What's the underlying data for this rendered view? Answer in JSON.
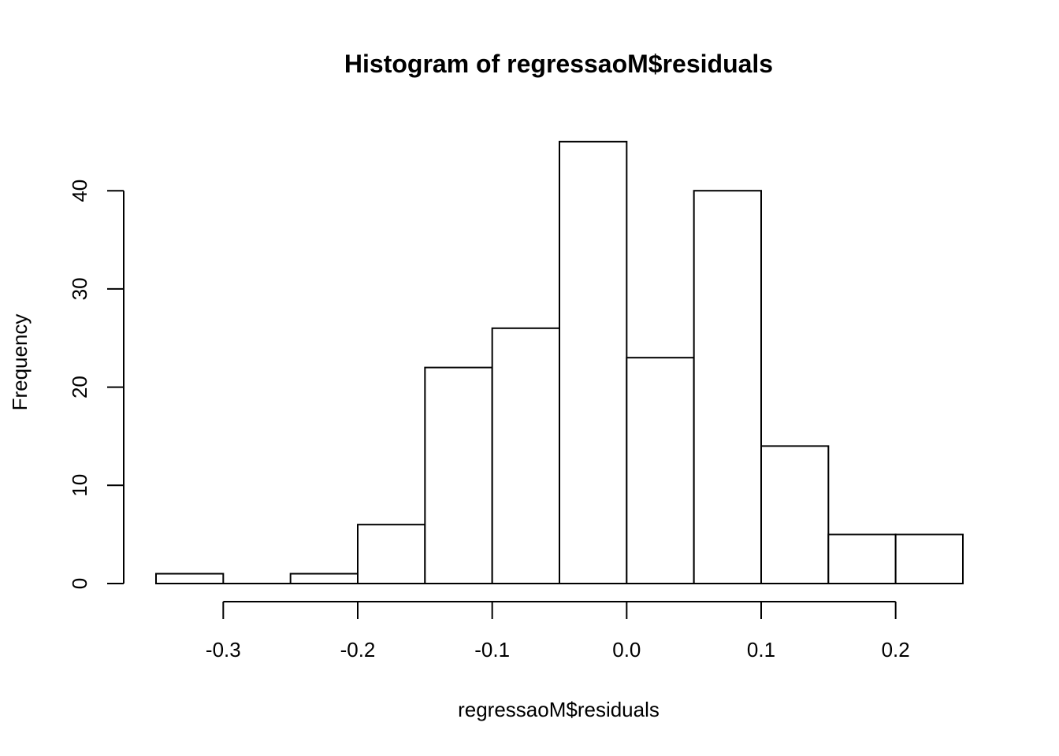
{
  "chart_data": {
    "type": "bar",
    "title": "Histogram of regressaoM$residuals",
    "xlabel": "regressaoM$residuals",
    "ylabel": "Frequency",
    "bins": [
      {
        "from": -0.35,
        "to": -0.3,
        "count": 1
      },
      {
        "from": -0.3,
        "to": -0.25,
        "count": 0
      },
      {
        "from": -0.25,
        "to": -0.2,
        "count": 1
      },
      {
        "from": -0.2,
        "to": -0.15,
        "count": 6
      },
      {
        "from": -0.15,
        "to": -0.1,
        "count": 22
      },
      {
        "from": -0.1,
        "to": -0.05,
        "count": 26
      },
      {
        "from": -0.05,
        "to": 0.0,
        "count": 45
      },
      {
        "from": 0.0,
        "to": 0.05,
        "count": 23
      },
      {
        "from": 0.05,
        "to": 0.1,
        "count": 40
      },
      {
        "from": 0.1,
        "to": 0.15,
        "count": 14
      },
      {
        "from": 0.15,
        "to": 0.2,
        "count": 5
      },
      {
        "from": 0.2,
        "to": 0.25,
        "count": 5
      }
    ],
    "xlim": [
      -0.35,
      0.25
    ],
    "ylim": [
      0,
      45
    ],
    "x_ticks": [
      -0.3,
      -0.2,
      -0.1,
      0.0,
      0.1,
      0.2
    ],
    "x_tick_labels": [
      "-0.3",
      "-0.2",
      "-0.1",
      "0.0",
      "0.1",
      "0.2"
    ],
    "y_ticks": [
      0,
      10,
      20,
      30,
      40
    ],
    "y_tick_labels": [
      "0",
      "10",
      "20",
      "30",
      "40"
    ],
    "grid": false,
    "bar_fill": "#ffffff",
    "bar_stroke": "#000000"
  }
}
